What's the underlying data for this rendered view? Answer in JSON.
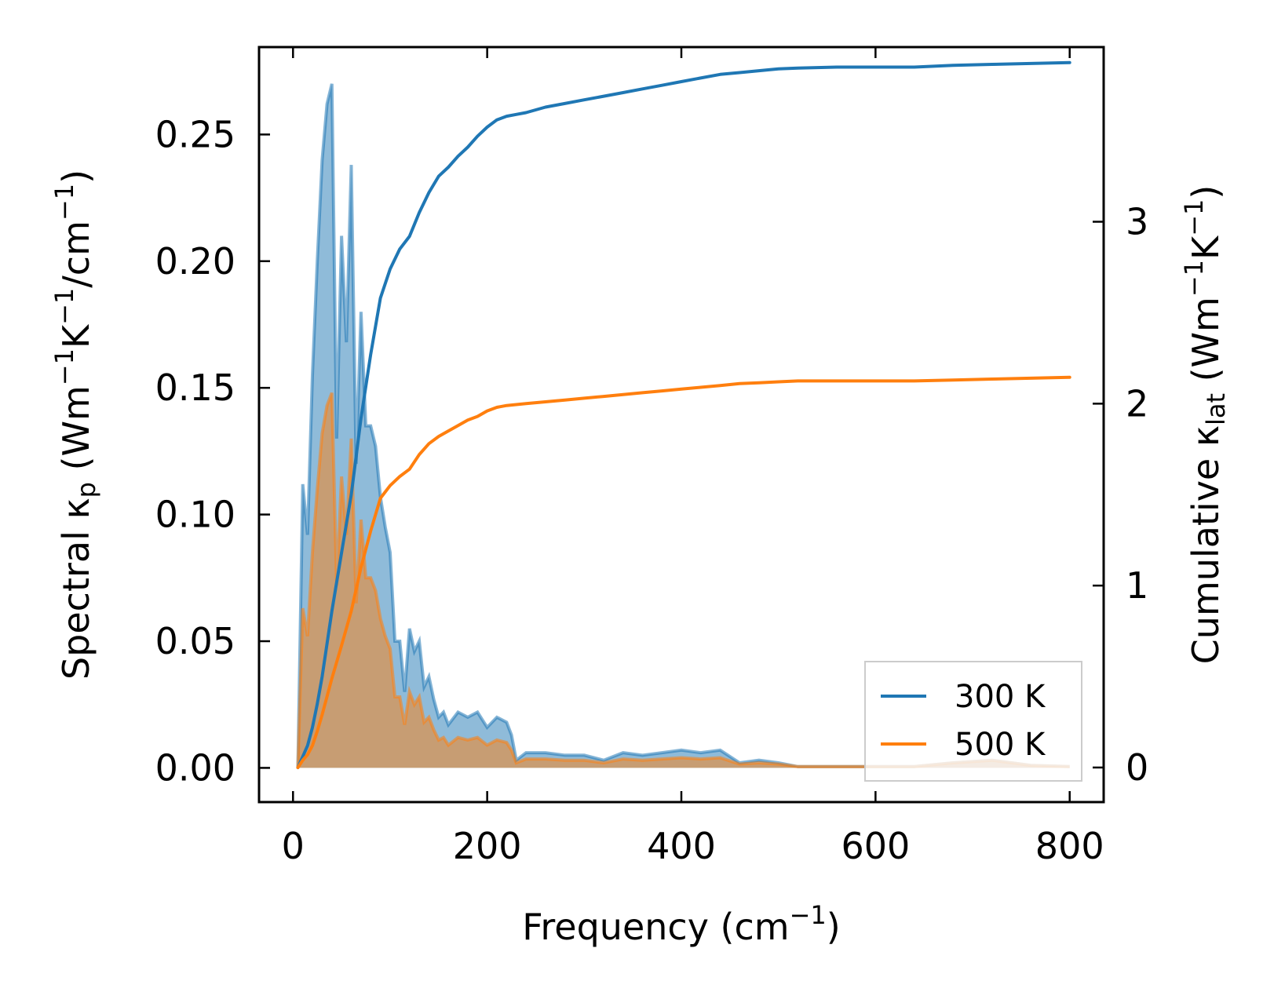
{
  "chart_data": {
    "type": "line",
    "xlabel_main": "Frequency (cm",
    "xlabel_sup": "−1",
    "xlabel_end": ")",
    "ylabel_left": {
      "p1": "Spectral κ",
      "sub1": "p",
      "p2": " (Wm",
      "sup1": "−1",
      "p3": "K",
      "sup2": "−1",
      "p4": "/cm",
      "sup3": "−1",
      "p5": ")"
    },
    "ylabel_right": {
      "p1": "Cumulative κ",
      "sub1": "lat",
      "p2": " (Wm",
      "sup1": "−1",
      "p3": "K",
      "sup2": "−1",
      "p4": ")"
    },
    "xlim": [
      -35,
      835
    ],
    "ylim_left": [
      -0.0135,
      0.2845
    ],
    "ylim_right": [
      -0.19,
      3.96
    ],
    "x_ticks": [
      0,
      200,
      400,
      600,
      800
    ],
    "x_tick_labels": [
      "0",
      "200",
      "400",
      "600",
      "800"
    ],
    "y_left_ticks": [
      0.0,
      0.05,
      0.1,
      0.15,
      0.2,
      0.25
    ],
    "y_left_tick_labels": [
      "0.00",
      "0.05",
      "0.10",
      "0.15",
      "0.20",
      "0.25"
    ],
    "y_right_ticks": [
      0,
      1,
      2,
      3
    ],
    "y_right_tick_labels": [
      "0",
      "1",
      "2",
      "3"
    ],
    "legend_position": "lower-right",
    "series": [
      {
        "name": "300 K",
        "color": "#1f77b4",
        "axis": "right",
        "kind": "cumulative",
        "x": [
          5,
          10,
          15,
          20,
          25,
          30,
          40,
          50,
          60,
          70,
          80,
          90,
          100,
          110,
          120,
          130,
          140,
          150,
          160,
          170,
          180,
          190,
          200,
          210,
          220,
          230,
          240,
          260,
          280,
          300,
          320,
          340,
          360,
          380,
          400,
          420,
          440,
          460,
          480,
          500,
          520,
          560,
          600,
          640,
          680,
          720,
          760,
          800
        ],
        "values": [
          0.0,
          0.06,
          0.12,
          0.22,
          0.35,
          0.5,
          0.86,
          1.18,
          1.5,
          1.92,
          2.27,
          2.58,
          2.74,
          2.85,
          2.92,
          3.05,
          3.16,
          3.25,
          3.3,
          3.36,
          3.41,
          3.47,
          3.52,
          3.56,
          3.58,
          3.59,
          3.6,
          3.63,
          3.65,
          3.67,
          3.69,
          3.71,
          3.73,
          3.75,
          3.77,
          3.79,
          3.81,
          3.82,
          3.83,
          3.84,
          3.845,
          3.85,
          3.85,
          3.85,
          3.86,
          3.865,
          3.87,
          3.875
        ]
      },
      {
        "name": "500 K",
        "color": "#ff7f0e",
        "axis": "right",
        "kind": "cumulative",
        "x": [
          5,
          10,
          15,
          20,
          25,
          30,
          40,
          50,
          60,
          70,
          80,
          90,
          100,
          110,
          120,
          130,
          140,
          150,
          160,
          170,
          180,
          190,
          200,
          210,
          220,
          230,
          240,
          260,
          280,
          300,
          320,
          340,
          360,
          380,
          400,
          420,
          440,
          460,
          480,
          500,
          520,
          560,
          600,
          640,
          680,
          720,
          760,
          800
        ],
        "values": [
          0.0,
          0.04,
          0.07,
          0.12,
          0.2,
          0.29,
          0.49,
          0.67,
          0.86,
          1.1,
          1.3,
          1.48,
          1.55,
          1.6,
          1.64,
          1.72,
          1.78,
          1.82,
          1.85,
          1.88,
          1.91,
          1.93,
          1.96,
          1.98,
          1.99,
          1.995,
          2.0,
          2.01,
          2.02,
          2.03,
          2.04,
          2.05,
          2.06,
          2.07,
          2.08,
          2.09,
          2.1,
          2.11,
          2.115,
          2.12,
          2.125,
          2.125,
          2.125,
          2.125,
          2.13,
          2.135,
          2.14,
          2.145
        ]
      }
    ],
    "spectral_series": [
      {
        "name": "300 K spectral",
        "color": "#1f77b4",
        "axis": "left",
        "x": [
          5,
          10,
          15,
          20,
          25,
          30,
          35,
          40,
          45,
          50,
          55,
          60,
          65,
          70,
          75,
          80,
          85,
          90,
          95,
          100,
          105,
          110,
          115,
          120,
          125,
          130,
          135,
          140,
          145,
          150,
          155,
          160,
          170,
          180,
          190,
          200,
          210,
          220,
          225,
          230,
          240,
          260,
          280,
          300,
          320,
          340,
          360,
          380,
          400,
          420,
          440,
          460,
          480,
          500,
          520,
          600,
          640,
          680,
          720,
          760,
          800
        ],
        "values": [
          0.0,
          0.112,
          0.092,
          0.155,
          0.2,
          0.24,
          0.262,
          0.27,
          0.13,
          0.21,
          0.168,
          0.238,
          0.12,
          0.18,
          0.135,
          0.135,
          0.127,
          0.107,
          0.095,
          0.085,
          0.05,
          0.05,
          0.03,
          0.055,
          0.046,
          0.05,
          0.032,
          0.036,
          0.027,
          0.02,
          0.022,
          0.017,
          0.022,
          0.02,
          0.022,
          0.016,
          0.02,
          0.018,
          0.013,
          0.003,
          0.006,
          0.006,
          0.005,
          0.005,
          0.003,
          0.006,
          0.005,
          0.006,
          0.007,
          0.006,
          0.007,
          0.002,
          0.003,
          0.002,
          0.0005,
          0.0005,
          0.0005,
          0.002,
          0.003,
          0.001,
          0.0005
        ]
      },
      {
        "name": "500 K spectral",
        "color": "#ff7f0e",
        "axis": "left",
        "x": [
          5,
          10,
          15,
          20,
          25,
          30,
          35,
          40,
          45,
          50,
          55,
          60,
          65,
          70,
          75,
          80,
          85,
          90,
          95,
          100,
          105,
          110,
          115,
          120,
          125,
          130,
          135,
          140,
          145,
          150,
          155,
          160,
          170,
          180,
          190,
          200,
          210,
          220,
          225,
          230,
          240,
          260,
          280,
          300,
          320,
          340,
          360,
          380,
          400,
          420,
          440,
          460,
          480,
          500,
          520,
          600,
          640,
          680,
          720,
          760,
          800
        ],
        "values": [
          0.0,
          0.063,
          0.052,
          0.085,
          0.11,
          0.132,
          0.143,
          0.148,
          0.072,
          0.115,
          0.092,
          0.13,
          0.065,
          0.098,
          0.075,
          0.075,
          0.07,
          0.059,
          0.052,
          0.047,
          0.028,
          0.028,
          0.017,
          0.03,
          0.025,
          0.028,
          0.018,
          0.02,
          0.015,
          0.011,
          0.012,
          0.009,
          0.012,
          0.011,
          0.012,
          0.009,
          0.011,
          0.01,
          0.007,
          0.002,
          0.0035,
          0.0035,
          0.003,
          0.003,
          0.002,
          0.0035,
          0.003,
          0.0035,
          0.004,
          0.0035,
          0.004,
          0.0015,
          0.002,
          0.0015,
          0.0005,
          0.0005,
          0.0005,
          0.002,
          0.003,
          0.001,
          0.0005
        ]
      }
    ]
  }
}
